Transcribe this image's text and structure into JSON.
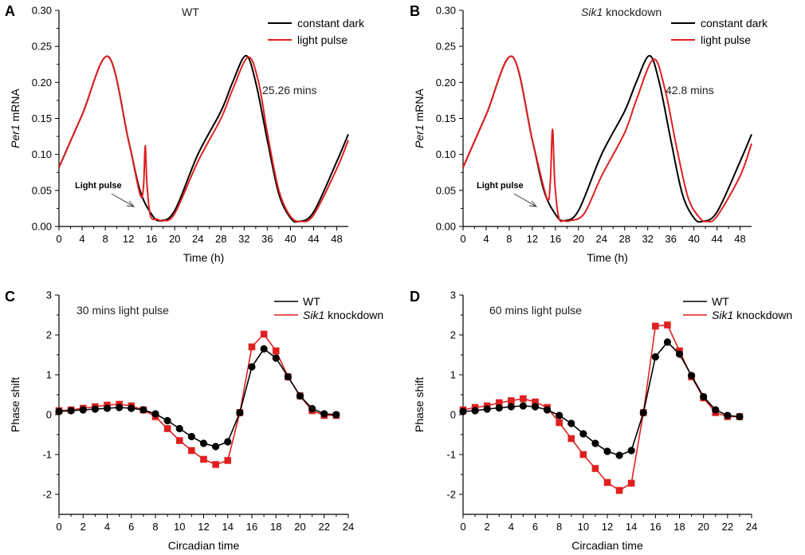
{
  "colors": {
    "black": "#000000",
    "red": "#e02020"
  },
  "chart_data": [
    {
      "id": "A",
      "type": "line",
      "panel_label": "A",
      "title": "WT",
      "xlabel": "Time (h)",
      "ylabel_italic": "Per1",
      "ylabel_rest": " mRNA",
      "xlim": [
        0,
        50
      ],
      "ylim": [
        0,
        0.3
      ],
      "xticks": [
        0,
        4,
        8,
        12,
        16,
        20,
        24,
        28,
        32,
        36,
        40,
        44,
        48
      ],
      "yticks": [
        0.0,
        0.05,
        0.1,
        0.15,
        0.2,
        0.25,
        0.3
      ],
      "ytick_labels": [
        "0.00",
        "0.05",
        "0.10",
        "0.15",
        "0.20",
        "0.25",
        "0.30"
      ],
      "series": [
        {
          "name": "constant dark",
          "color": "#000000",
          "x": [
            0,
            4,
            8.5,
            12,
            14,
            16,
            17.5,
            20,
            24,
            28,
            30,
            32.3,
            34,
            36,
            38,
            40,
            41.5,
            44,
            48,
            50
          ],
          "y": [
            0.082,
            0.155,
            0.236,
            0.12,
            0.05,
            0.017,
            0.008,
            0.022,
            0.1,
            0.16,
            0.2,
            0.237,
            0.2,
            0.12,
            0.045,
            0.012,
            0.007,
            0.02,
            0.09,
            0.128
          ]
        },
        {
          "name": "light pulse",
          "color": "#e02020",
          "x": [
            0,
            4,
            8.5,
            12,
            14,
            14.6,
            14.9,
            15.2,
            15.8,
            17,
            18,
            20,
            24,
            28,
            30,
            32.7,
            34.5,
            36,
            38,
            40,
            41.8,
            44,
            48,
            50
          ],
          "y": [
            0.082,
            0.155,
            0.236,
            0.12,
            0.045,
            0.055,
            0.112,
            0.06,
            0.015,
            0.01,
            0.008,
            0.018,
            0.09,
            0.15,
            0.19,
            0.235,
            0.2,
            0.13,
            0.05,
            0.014,
            0.007,
            0.016,
            0.08,
            0.12
          ]
        }
      ],
      "legend": [
        "constant dark",
        "light pulse"
      ],
      "annotations": {
        "shift": "25.26 mins",
        "pulse": "Light pulse"
      }
    },
    {
      "id": "B",
      "type": "line",
      "panel_label": "B",
      "title_italic": "Sik1",
      "title_rest": " knockdown",
      "xlabel": "Time (h)",
      "ylabel_italic": "Per1",
      "ylabel_rest": " mRNA",
      "xlim": [
        0,
        50
      ],
      "ylim": [
        0,
        0.3
      ],
      "xticks": [
        0,
        4,
        8,
        12,
        16,
        20,
        24,
        28,
        32,
        36,
        40,
        44,
        48
      ],
      "yticks": [
        0.0,
        0.05,
        0.1,
        0.15,
        0.2,
        0.25,
        0.3
      ],
      "ytick_labels": [
        "0.00",
        "0.05",
        "0.10",
        "0.15",
        "0.20",
        "0.25",
        "0.30"
      ],
      "series": [
        {
          "name": "constant dark",
          "color": "#000000",
          "x": [
            0,
            4,
            8.5,
            12,
            14,
            16,
            17.5,
            20,
            24,
            28,
            30,
            32.3,
            34,
            36,
            38,
            40,
            41.5,
            44,
            48,
            50
          ],
          "y": [
            0.082,
            0.155,
            0.236,
            0.12,
            0.05,
            0.017,
            0.008,
            0.022,
            0.1,
            0.16,
            0.2,
            0.237,
            0.2,
            0.12,
            0.045,
            0.012,
            0.007,
            0.02,
            0.09,
            0.128
          ]
        },
        {
          "name": "light pulse",
          "color": "#e02020",
          "x": [
            0,
            4,
            8.5,
            12,
            14.5,
            15.1,
            15.5,
            15.9,
            16.6,
            17.5,
            18.5,
            21,
            24,
            28,
            30,
            33,
            35,
            37,
            39,
            41,
            42.3,
            44,
            48,
            50
          ],
          "y": [
            0.082,
            0.155,
            0.236,
            0.12,
            0.04,
            0.06,
            0.135,
            0.06,
            0.012,
            0.008,
            0.008,
            0.018,
            0.07,
            0.13,
            0.175,
            0.232,
            0.19,
            0.11,
            0.04,
            0.012,
            0.007,
            0.014,
            0.07,
            0.115
          ]
        }
      ],
      "legend": [
        "constant dark",
        "light pulse"
      ],
      "annotations": {
        "shift": "42.8 mins",
        "pulse": "Light pulse"
      }
    },
    {
      "id": "C",
      "type": "line",
      "panel_label": "C",
      "title": "30 mins light pulse",
      "xlabel": "Circadian time",
      "ylabel": "Phase shift",
      "xlim": [
        0,
        24
      ],
      "ylim": [
        -2.5,
        3
      ],
      "xticks": [
        0,
        2,
        4,
        6,
        8,
        10,
        12,
        14,
        16,
        18,
        20,
        22,
        24
      ],
      "yticks": [
        -2,
        -1,
        0,
        1,
        2,
        3
      ],
      "series": [
        {
          "name": "WT",
          "color": "#000000",
          "marker": "circle",
          "x": [
            0,
            1,
            2,
            3,
            4,
            5,
            6,
            7,
            8,
            9,
            10,
            11,
            12,
            13,
            14,
            15,
            16,
            17,
            18,
            19,
            20,
            21,
            22,
            23
          ],
          "y": [
            0.08,
            0.1,
            0.12,
            0.14,
            0.16,
            0.18,
            0.16,
            0.12,
            0.02,
            -0.15,
            -0.35,
            -0.55,
            -0.72,
            -0.8,
            -0.68,
            0.05,
            1.2,
            1.65,
            1.42,
            0.95,
            0.47,
            0.15,
            0.02,
            0
          ]
        },
        {
          "name": "Sik1 knockdown",
          "color": "#e02020",
          "marker": "square",
          "x": [
            0,
            1,
            2,
            3,
            4,
            5,
            6,
            7,
            8,
            9,
            10,
            11,
            12,
            13,
            14,
            15,
            16,
            17,
            18,
            19,
            20,
            21,
            22,
            23
          ],
          "y": [
            0.1,
            0.12,
            0.16,
            0.2,
            0.24,
            0.26,
            0.22,
            0.12,
            -0.05,
            -0.35,
            -0.65,
            -0.9,
            -1.12,
            -1.25,
            -1.15,
            0.05,
            1.7,
            2.02,
            1.6,
            0.95,
            0.47,
            0.1,
            -0.02,
            -0.02
          ]
        }
      ],
      "legend_plain": [
        "WT",
        ""
      ],
      "legend_italic": [
        "",
        "Sik1"
      ],
      "legend_suffix": [
        "",
        " knockdown"
      ]
    },
    {
      "id": "D",
      "type": "line",
      "panel_label": "D",
      "title": "60 mins light pulse",
      "xlabel": "Circadian time",
      "ylabel": "Phase shift",
      "xlim": [
        0,
        24
      ],
      "ylim": [
        -2.5,
        3
      ],
      "xticks": [
        0,
        2,
        4,
        6,
        8,
        10,
        12,
        14,
        16,
        18,
        20,
        22,
        24
      ],
      "yticks": [
        -2,
        -1,
        0,
        1,
        2,
        3
      ],
      "series": [
        {
          "name": "WT",
          "color": "#000000",
          "marker": "circle",
          "x": [
            0,
            1,
            2,
            3,
            4,
            5,
            6,
            7,
            8,
            9,
            10,
            11,
            12,
            13,
            14,
            15,
            16,
            17,
            18,
            19,
            20,
            21,
            22,
            23
          ],
          "y": [
            0.08,
            0.1,
            0.14,
            0.17,
            0.2,
            0.22,
            0.2,
            0.12,
            -0.02,
            -0.22,
            -0.48,
            -0.72,
            -0.92,
            -1.02,
            -0.9,
            0.05,
            1.45,
            1.82,
            1.52,
            0.98,
            0.45,
            0.12,
            -0.02,
            -0.05
          ]
        },
        {
          "name": "Sik1 knockdown",
          "color": "#e02020",
          "marker": "square",
          "x": [
            0,
            1,
            2,
            3,
            4,
            5,
            6,
            7,
            8,
            9,
            10,
            11,
            12,
            13,
            14,
            15,
            16,
            17,
            18,
            19,
            20,
            21,
            22,
            23
          ],
          "y": [
            0.12,
            0.18,
            0.22,
            0.3,
            0.35,
            0.4,
            0.32,
            0.18,
            -0.2,
            -0.6,
            -1.0,
            -1.35,
            -1.7,
            -1.9,
            -1.72,
            0.05,
            2.22,
            2.25,
            1.6,
            0.95,
            0.42,
            0.05,
            -0.05,
            -0.05
          ]
        }
      ],
      "legend_plain": [
        "WT",
        ""
      ],
      "legend_italic": [
        "",
        "Sik1"
      ],
      "legend_suffix": [
        "",
        " knockdown"
      ]
    }
  ]
}
